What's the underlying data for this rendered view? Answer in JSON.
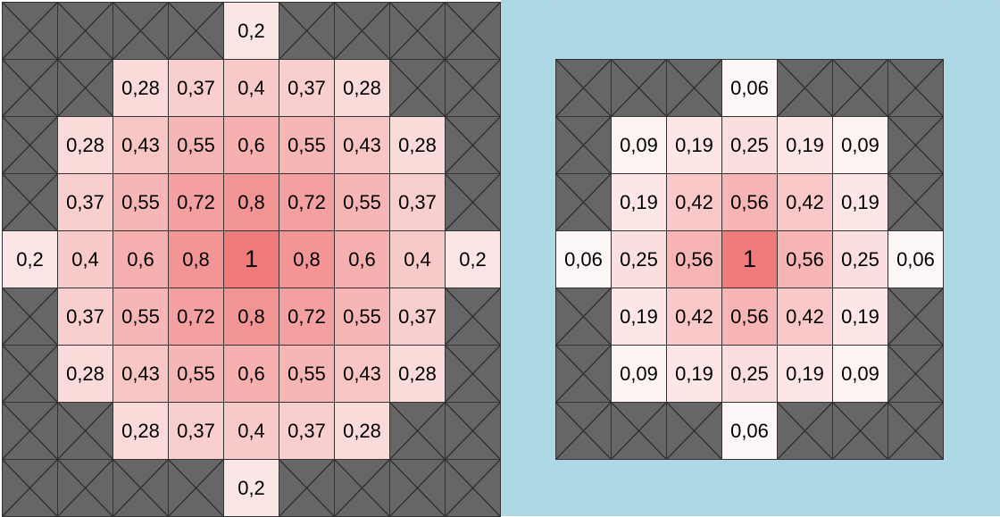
{
  "left_grid": {
    "size": 9,
    "rows": [
      [
        null,
        null,
        null,
        null,
        "0,2",
        null,
        null,
        null,
        null
      ],
      [
        null,
        null,
        "0,28",
        "0,37",
        "0,4",
        "0,37",
        "0,28",
        null,
        null
      ],
      [
        null,
        "0,28",
        "0,43",
        "0,55",
        "0,6",
        "0,55",
        "0,43",
        "0,28",
        null
      ],
      [
        null,
        "0,37",
        "0,55",
        "0,72",
        "0,8",
        "0,72",
        "0,55",
        "0,37",
        null
      ],
      [
        "0,2",
        "0,4",
        "0,6",
        "0,8",
        "1",
        "0,8",
        "0,6",
        "0,4",
        "0,2"
      ],
      [
        null,
        "0,37",
        "0,55",
        "0,72",
        "0,8",
        "0,72",
        "0,55",
        "0,37",
        null
      ],
      [
        null,
        "0,28",
        "0,43",
        "0,55",
        "0,6",
        "0,55",
        "0,43",
        "0,28",
        null
      ],
      [
        null,
        null,
        "0,28",
        "0,37",
        "0,4",
        "0,37",
        "0,28",
        null,
        null
      ],
      [
        null,
        null,
        null,
        null,
        "0,2",
        null,
        null,
        null,
        null
      ]
    ]
  },
  "right_grid": {
    "size": 7,
    "rows": [
      [
        null,
        null,
        null,
        "0,06",
        null,
        null,
        null
      ],
      [
        null,
        "0,09",
        "0,19",
        "0,25",
        "0,19",
        "0,09",
        null
      ],
      [
        null,
        "0,19",
        "0,42",
        "0,56",
        "0,42",
        "0,19",
        null
      ],
      [
        "0,06",
        "0,25",
        "0,56",
        "1",
        "0,56",
        "0,25",
        "0,06"
      ],
      [
        null,
        "0,19",
        "0,42",
        "0,56",
        "0,42",
        "0,19",
        null
      ],
      [
        null,
        "0,09",
        "0,19",
        "0,25",
        "0,19",
        "0,09",
        null
      ],
      [
        null,
        null,
        null,
        "0,06",
        null,
        null,
        null
      ]
    ]
  },
  "colors": {
    "blocked": "#666666",
    "heat_full": "#f07b7b",
    "heat_zero": "#ffffff",
    "right_background": "#add8e6"
  }
}
